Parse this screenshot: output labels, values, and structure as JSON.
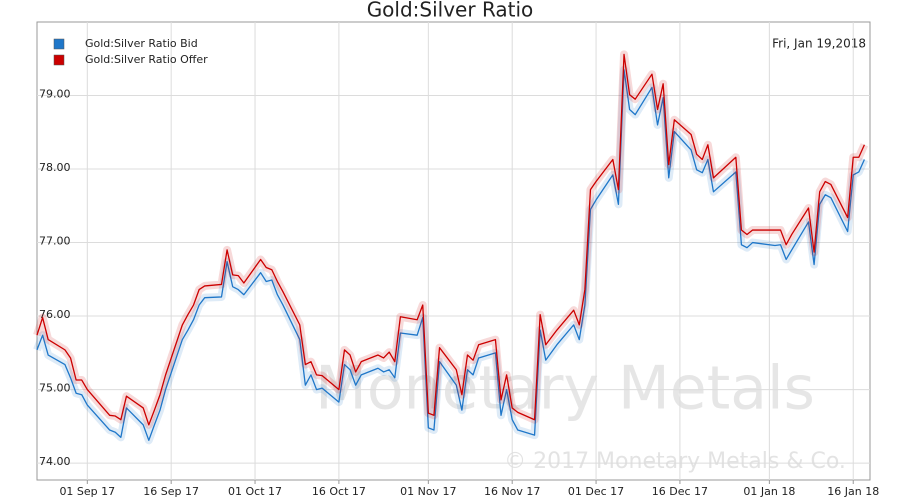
{
  "chart_data": {
    "type": "line",
    "title": "Gold:Silver Ratio",
    "date_label": "Fri, Jan 19,2018",
    "watermark": "Monetary Metals",
    "copyright": "© 2017 Monetary Metals & Co.",
    "grid": true,
    "legend_position": "top-left",
    "x": [
      "2017-08-23",
      "2017-08-24",
      "2017-08-25",
      "2017-08-28",
      "2017-08-29",
      "2017-08-30",
      "2017-08-31",
      "2017-09-01",
      "2017-09-05",
      "2017-09-06",
      "2017-09-07",
      "2017-09-08",
      "2017-09-11",
      "2017-09-12",
      "2017-09-13",
      "2017-09-14",
      "2017-09-15",
      "2017-09-18",
      "2017-09-19",
      "2017-09-20",
      "2017-09-21",
      "2017-09-22",
      "2017-09-25",
      "2017-09-26",
      "2017-09-27",
      "2017-09-28",
      "2017-09-29",
      "2017-10-02",
      "2017-10-03",
      "2017-10-04",
      "2017-10-05",
      "2017-10-06",
      "2017-10-09",
      "2017-10-10",
      "2017-10-11",
      "2017-10-12",
      "2017-10-13",
      "2017-10-16",
      "2017-10-17",
      "2017-10-18",
      "2017-10-19",
      "2017-10-20",
      "2017-10-23",
      "2017-10-24",
      "2017-10-25",
      "2017-10-26",
      "2017-10-27",
      "2017-10-30",
      "2017-10-31",
      "2017-11-01",
      "2017-11-02",
      "2017-11-03",
      "2017-11-06",
      "2017-11-07",
      "2017-11-08",
      "2017-11-09",
      "2017-11-10",
      "2017-11-13",
      "2017-11-14",
      "2017-11-15",
      "2017-11-16",
      "2017-11-17",
      "2017-11-20",
      "2017-11-21",
      "2017-11-22",
      "2017-11-24",
      "2017-11-27",
      "2017-11-28",
      "2017-11-29",
      "2017-11-30",
      "2017-12-01",
      "2017-12-04",
      "2017-12-05",
      "2017-12-06",
      "2017-12-07",
      "2017-12-08",
      "2017-12-11",
      "2017-12-12",
      "2017-12-13",
      "2017-12-14",
      "2017-12-15",
      "2017-12-18",
      "2017-12-19",
      "2017-12-20",
      "2017-12-21",
      "2017-12-22",
      "2017-12-26",
      "2017-12-27",
      "2017-12-28",
      "2017-12-29",
      "2018-01-02",
      "2018-01-03",
      "2018-01-04",
      "2018-01-05",
      "2018-01-08",
      "2018-01-09",
      "2018-01-10",
      "2018-01-11",
      "2018-01-12",
      "2018-01-15",
      "2018-01-16",
      "2018-01-17",
      "2018-01-18"
    ],
    "series": [
      {
        "name": "Gold:Silver Ratio Bid",
        "color": "#1f77c9",
        "values": [
          75.54,
          75.74,
          75.47,
          75.34,
          75.16,
          74.95,
          74.93,
          74.79,
          74.45,
          74.42,
          74.35,
          74.75,
          74.52,
          74.31,
          74.52,
          74.72,
          75.0,
          75.68,
          75.81,
          75.95,
          76.15,
          76.25,
          76.26,
          76.74,
          76.4,
          76.36,
          76.29,
          76.59,
          76.47,
          76.49,
          76.29,
          76.15,
          75.68,
          75.06,
          75.2,
          75.0,
          75.02,
          74.83,
          75.34,
          75.27,
          75.06,
          75.2,
          75.29,
          75.24,
          75.27,
          75.16,
          75.77,
          75.74,
          75.98,
          74.48,
          74.45,
          75.38,
          75.06,
          74.72,
          75.27,
          75.2,
          75.43,
          75.5,
          74.65,
          75.0,
          74.59,
          74.45,
          74.38,
          75.81,
          75.4,
          75.61,
          75.88,
          75.68,
          76.15,
          77.45,
          77.58,
          77.92,
          77.52,
          79.35,
          78.81,
          78.74,
          79.11,
          78.6,
          78.97,
          77.88,
          78.51,
          78.26,
          77.99,
          77.95,
          78.13,
          77.69,
          77.96,
          76.97,
          76.93,
          77.0,
          76.96,
          76.97,
          76.77,
          76.9,
          77.28,
          76.7,
          77.52,
          77.65,
          77.61,
          77.15,
          77.92,
          77.96,
          78.13
        ]
      },
      {
        "name": "Gold:Silver Ratio Offer",
        "color": "#cc0000",
        "values": [
          75.74,
          75.98,
          75.68,
          75.54,
          75.43,
          75.13,
          75.13,
          75.0,
          74.65,
          74.64,
          74.59,
          74.91,
          74.75,
          74.52,
          74.72,
          74.93,
          75.2,
          75.88,
          76.02,
          76.15,
          76.36,
          76.41,
          76.43,
          76.9,
          76.56,
          76.55,
          76.45,
          76.77,
          76.66,
          76.63,
          76.47,
          76.33,
          75.88,
          75.34,
          75.38,
          75.2,
          75.19,
          75.0,
          75.54,
          75.47,
          75.24,
          75.38,
          75.47,
          75.43,
          75.51,
          75.38,
          75.99,
          75.95,
          76.15,
          74.68,
          74.65,
          75.57,
          75.27,
          74.93,
          75.47,
          75.4,
          75.61,
          75.68,
          74.86,
          75.2,
          74.75,
          74.69,
          74.59,
          76.02,
          75.61,
          75.81,
          76.08,
          75.88,
          76.36,
          77.72,
          77.83,
          78.13,
          77.72,
          79.56,
          79.01,
          78.95,
          79.29,
          78.81,
          79.16,
          78.06,
          78.67,
          78.47,
          78.2,
          78.13,
          78.33,
          77.88,
          78.16,
          77.17,
          77.11,
          77.17,
          77.17,
          77.17,
          76.97,
          77.11,
          77.47,
          76.87,
          77.69,
          77.83,
          77.79,
          77.34,
          78.16,
          78.16,
          78.33
        ]
      }
    ],
    "xlim": [
      "2017-08-23",
      "2018-01-19"
    ],
    "xticks": [
      {
        "value": "2017-09-01",
        "label": "01 Sep 17"
      },
      {
        "value": "2017-09-16",
        "label": "16 Sep 17"
      },
      {
        "value": "2017-10-01",
        "label": "01 Oct 17"
      },
      {
        "value": "2017-10-16",
        "label": "16 Oct 17"
      },
      {
        "value": "2017-11-01",
        "label": "01 Nov 17"
      },
      {
        "value": "2017-11-16",
        "label": "16 Nov 17"
      },
      {
        "value": "2017-12-01",
        "label": "01 Dec 17"
      },
      {
        "value": "2017-12-16",
        "label": "16 Dec 17"
      },
      {
        "value": "2018-01-01",
        "label": "01 Jan 18"
      },
      {
        "value": "2018-01-16",
        "label": "16 Jan 18"
      }
    ],
    "ylim": [
      73.77,
      80.0
    ],
    "yticks": [
      {
        "value": 74,
        "label": "74.00"
      },
      {
        "value": 75,
        "label": "75.00"
      },
      {
        "value": 76,
        "label": "76.00"
      },
      {
        "value": 77,
        "label": "77.00"
      },
      {
        "value": 78,
        "label": "78.00"
      },
      {
        "value": 79,
        "label": "79.00"
      }
    ]
  }
}
